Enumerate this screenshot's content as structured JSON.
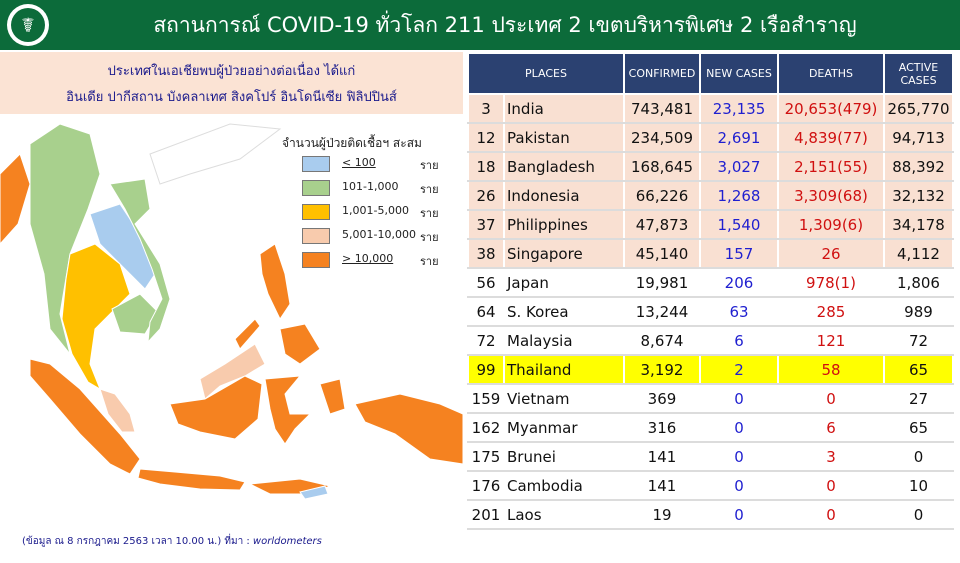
{
  "header": {
    "title": "สถานการณ์ COVID-19 ทั่วโลก 211 ประเทศ 2 เขตบริหารพิเศษ 2 เรือสำราญ",
    "logo_icon": "ministry-seal-icon",
    "bg_color": "#0c6b3a"
  },
  "note": {
    "line1": "ประเทศในเอเชียพบผู้ป่วยอย่างต่อเนื่อง  ได้แก่",
    "line2": "อินเดีย ปากีสถาน บังคลาเทศ สิงคโปร์ อินโดนีเซีย ฟิลิปปินส์"
  },
  "legend": {
    "title": "จำนวนผู้ป่วยติดเชื้อฯ สะสม",
    "items": [
      {
        "range": "< 100",
        "unit": "ราย",
        "color": "#a9ccee"
      },
      {
        "range": "101-1,000",
        "unit": "ราย",
        "color": "#a8d08d"
      },
      {
        "range": "1,001-5,000",
        "unit": "ราย",
        "color": "#ffc000"
      },
      {
        "range": "5,001-10,000",
        "unit": "ราย",
        "color": "#f8cbad"
      },
      {
        "range": "> 10,000",
        "unit": "ราย",
        "color": "#f58220"
      }
    ]
  },
  "source": {
    "prefix": "(ข้อมูล ณ 8 กรกฎาคม 2563 เวลา 10.00 น.) ที่มา : ",
    "name": "worldometers"
  },
  "table": {
    "headers": {
      "places": "PLACES",
      "confirmed": "CONFIRMED",
      "new_cases": "NEW  CASES",
      "deaths": "DEATHS",
      "active_1": "ACTIVE",
      "active_2": "CASES"
    },
    "rows": [
      {
        "rank": "3",
        "place": "India",
        "confirmed": "743,481",
        "new_cases": "23,135",
        "deaths": "20,653(479)",
        "active": "265,770"
      },
      {
        "rank": "12",
        "place": "Pakistan",
        "confirmed": "234,509",
        "new_cases": "2,691",
        "deaths": "4,839(77)",
        "active": "94,713"
      },
      {
        "rank": "18",
        "place": "Bangladesh",
        "confirmed": "168,645",
        "new_cases": "3,027",
        "deaths": "2,151(55)",
        "active": "88,392"
      },
      {
        "rank": "26",
        "place": "Indonesia",
        "confirmed": "66,226",
        "new_cases": "1,268",
        "deaths": "3,309(68)",
        "active": "32,132"
      },
      {
        "rank": "37",
        "place": "Philippines",
        "confirmed": "47,873",
        "new_cases": "1,540",
        "deaths": "1,309(6)",
        "active": "34,178"
      },
      {
        "rank": "38",
        "place": "Singapore",
        "confirmed": "45,140",
        "new_cases": "157",
        "deaths": "26",
        "active": "4,112"
      },
      {
        "rank": "56",
        "place": "Japan",
        "confirmed": "19,981",
        "new_cases": "206",
        "deaths": "978(1)",
        "active": "1,806"
      },
      {
        "rank": "64",
        "place": "S. Korea",
        "confirmed": "13,244",
        "new_cases": "63",
        "deaths": "285",
        "active": "989"
      },
      {
        "rank": "72",
        "place": "Malaysia",
        "confirmed": "8,674",
        "new_cases": "6",
        "deaths": "121",
        "active": "72"
      },
      {
        "rank": "99",
        "place": "Thailand",
        "confirmed": "3,192",
        "new_cases": "2",
        "deaths": "58",
        "active": "65"
      },
      {
        "rank": "159",
        "place": "Vietnam",
        "confirmed": "369",
        "new_cases": "0",
        "deaths": "0",
        "active": "27"
      },
      {
        "rank": "162",
        "place": "Myanmar",
        "confirmed": "316",
        "new_cases": "0",
        "deaths": "6",
        "active": "65"
      },
      {
        "rank": "175",
        "place": "Brunei",
        "confirmed": "141",
        "new_cases": "0",
        "deaths": "3",
        "active": "0"
      },
      {
        "rank": "176",
        "place": "Cambodia",
        "confirmed": "141",
        "new_cases": "0",
        "deaths": "0",
        "active": "10"
      },
      {
        "rank": "201",
        "place": "Laos",
        "confirmed": "19",
        "new_cases": "0",
        "deaths": "0",
        "active": "0"
      }
    ]
  },
  "colors": {
    "header_blue": "#2b4171",
    "highlight_row": "#f9e0d2",
    "thailand_row": "#ffff00",
    "new_cases_text": "#1f1fd0",
    "deaths_text": "#d01010"
  }
}
